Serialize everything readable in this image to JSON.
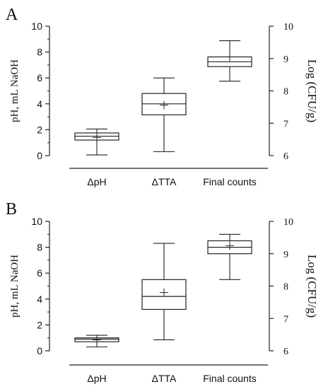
{
  "chart_data": [
    {
      "type": "box",
      "panel_label": "A",
      "title": "",
      "xlabel": "",
      "ylabel_left": "pH, mL NaOH",
      "ylabel_right": "Log (CFU/g)",
      "categories": [
        "ΔpH",
        "ΔTTA",
        "Final counts"
      ],
      "ylim_left": [
        0,
        10
      ],
      "yticks_left": [
        "0",
        "2",
        "4",
        "6",
        "8",
        "10"
      ],
      "ylim_right": [
        6,
        10
      ],
      "yticks_right": [
        "6",
        "7",
        "8",
        "9",
        "10"
      ],
      "grid": false,
      "boxes": [
        {
          "category": "ΔpH",
          "axis": "left",
          "min": 0.05,
          "q1": 1.2,
          "median": 1.5,
          "q3": 1.75,
          "max": 2.05,
          "mean": 1.4
        },
        {
          "category": "ΔTTA",
          "axis": "left",
          "min": 0.3,
          "q1": 3.15,
          "median": 4.0,
          "q3": 4.8,
          "max": 6.0,
          "mean": 3.9
        },
        {
          "category": "Final counts",
          "axis": "right",
          "min": 8.3,
          "q1": 8.75,
          "median": 8.9,
          "q3": 9.05,
          "max": 9.55,
          "mean": 9.05
        }
      ]
    },
    {
      "type": "box",
      "panel_label": "B",
      "title": "",
      "xlabel": "",
      "ylabel_left": "pH, mL NaOH",
      "ylabel_right": "Log (CFU/g)",
      "categories": [
        "ΔpH",
        "ΔTTA",
        "Final counts"
      ],
      "ylim_left": [
        0,
        10
      ],
      "yticks_left": [
        "0",
        "2",
        "4",
        "6",
        "8",
        "10"
      ],
      "ylim_right": [
        6,
        10
      ],
      "yticks_right": [
        "6",
        "7",
        "8",
        "9",
        "10"
      ],
      "grid": false,
      "boxes": [
        {
          "category": "ΔpH",
          "axis": "left",
          "min": 0.3,
          "q1": 0.7,
          "median": 0.9,
          "q3": 1.0,
          "max": 1.2,
          "mean": 0.85
        },
        {
          "category": "ΔTTA",
          "axis": "left",
          "min": 0.85,
          "q1": 3.2,
          "median": 4.2,
          "q3": 5.5,
          "max": 8.3,
          "mean": 4.5
        },
        {
          "category": "Final counts",
          "axis": "right",
          "min": 8.2,
          "q1": 9.0,
          "median": 9.2,
          "q3": 9.4,
          "max": 9.6,
          "mean": 9.25
        }
      ]
    }
  ]
}
